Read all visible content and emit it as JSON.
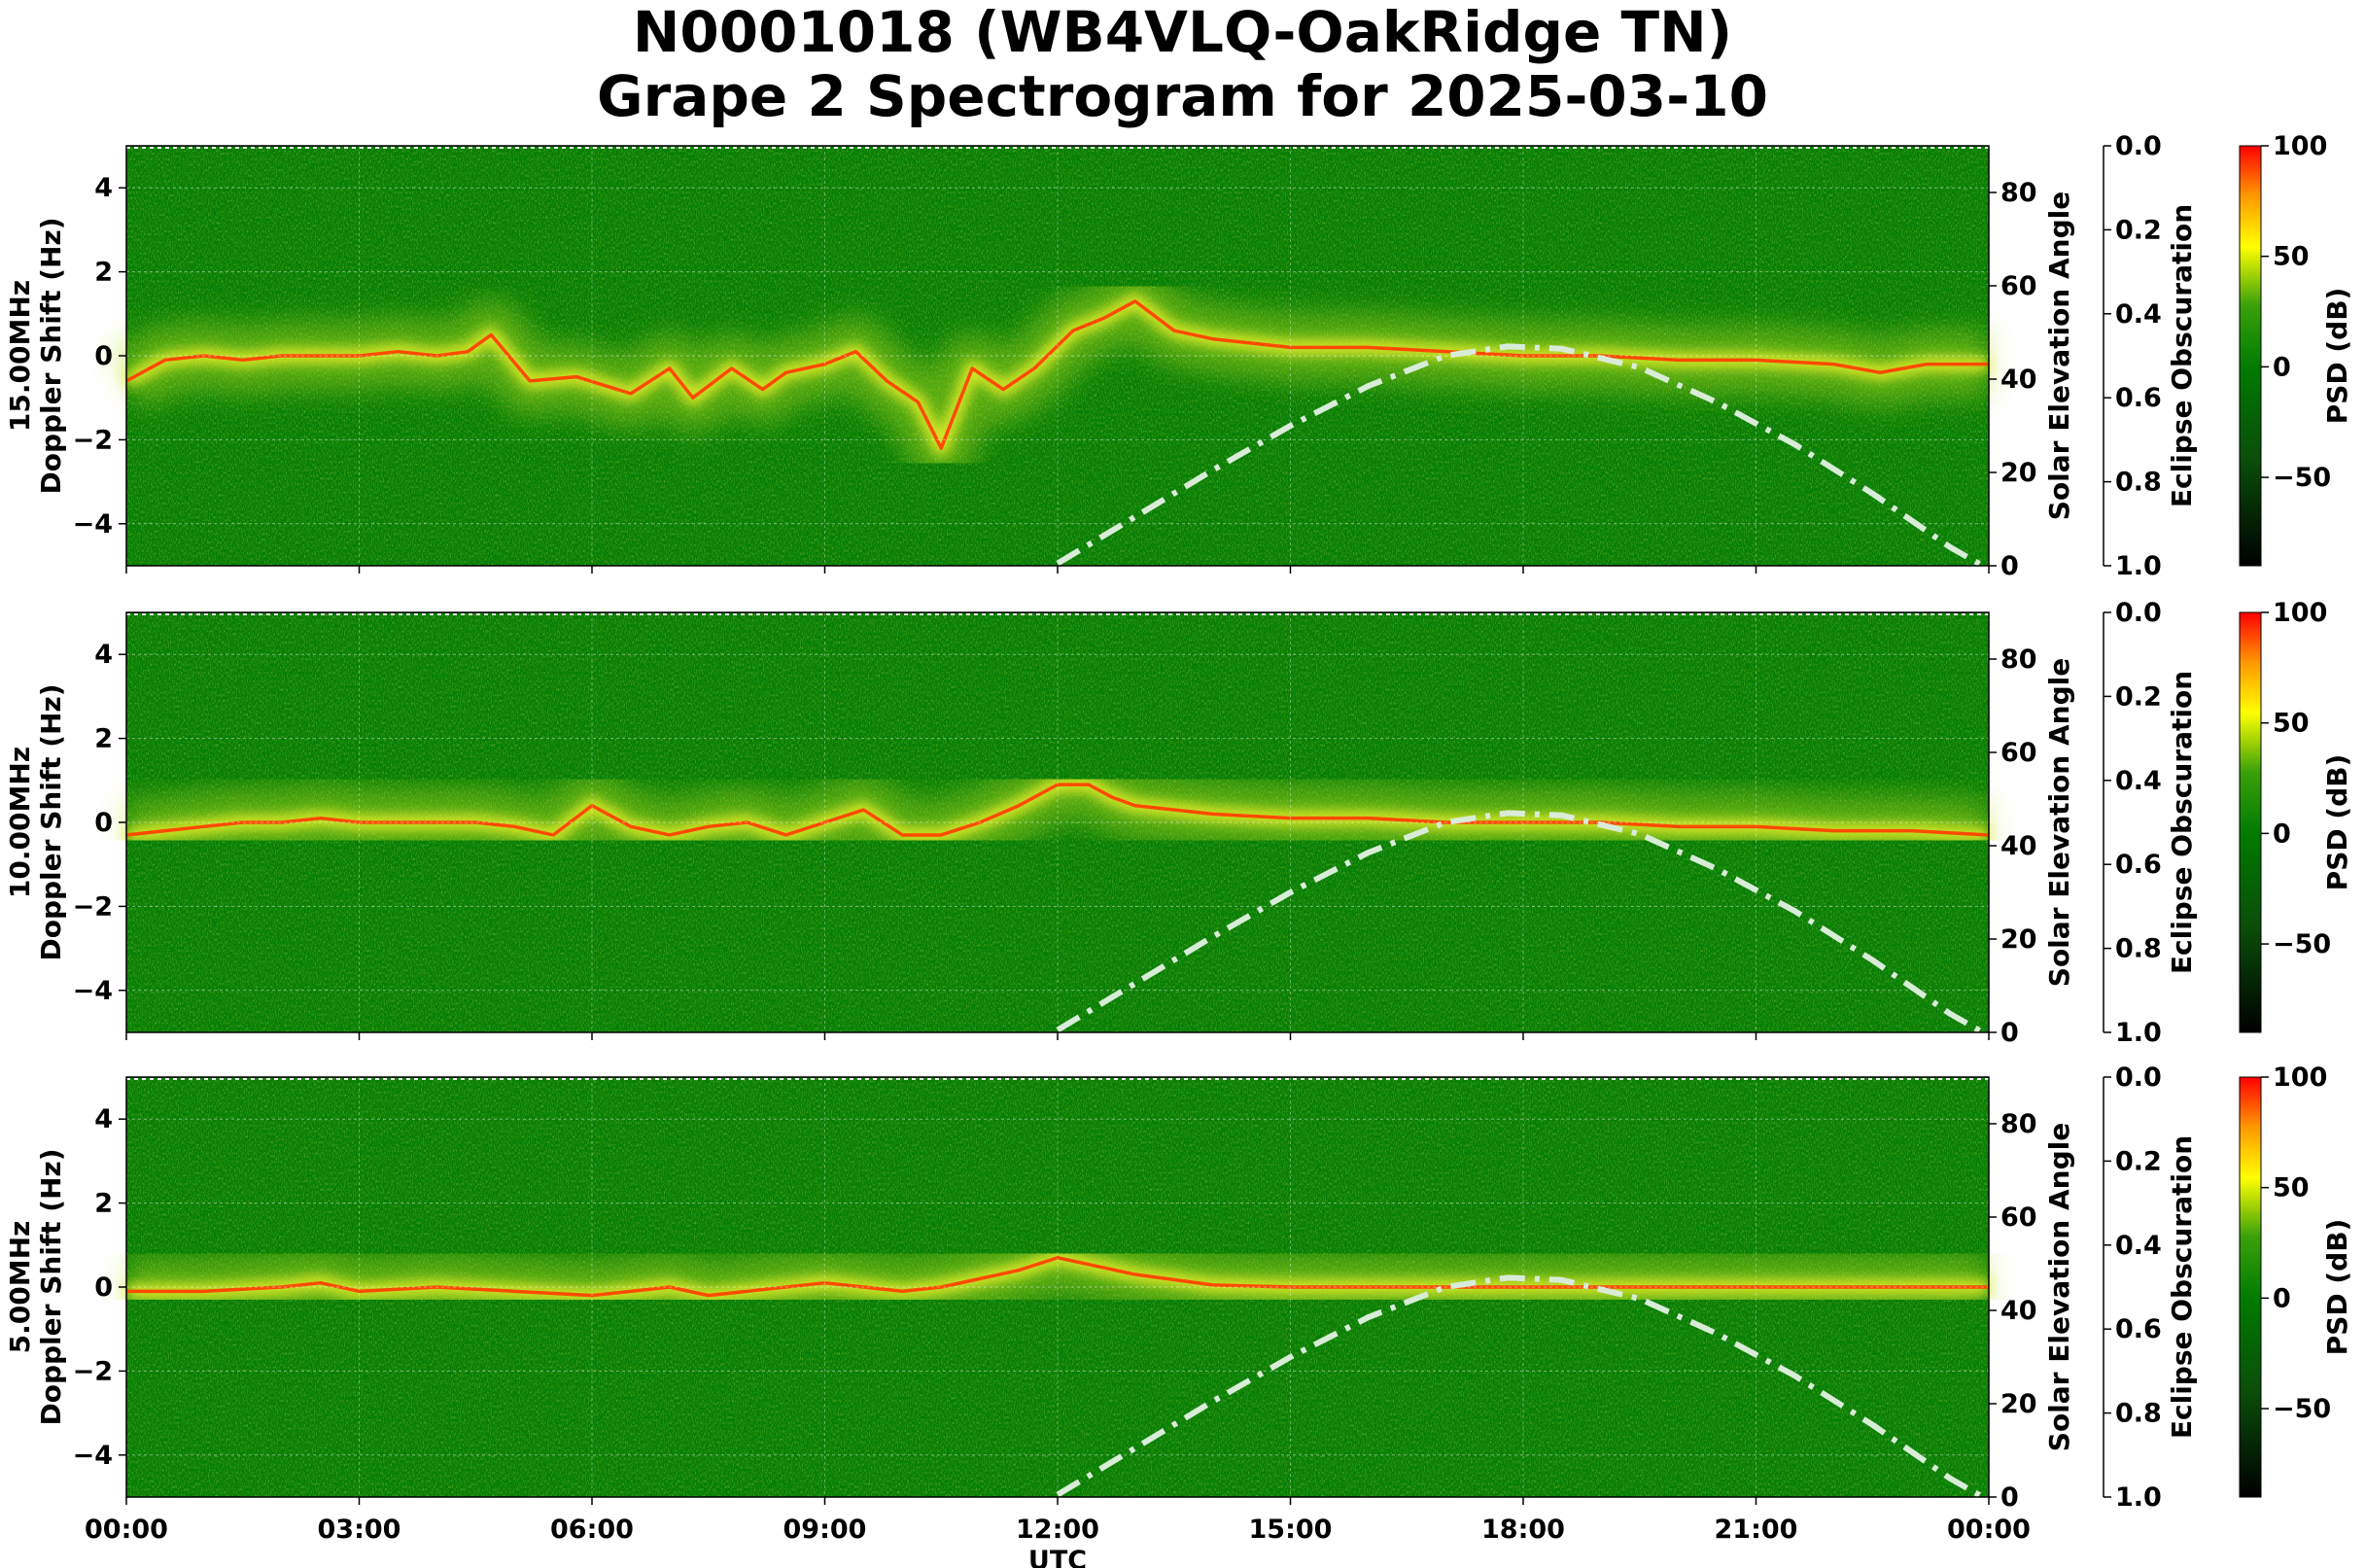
{
  "figure": {
    "title_line1": "N0001018 (WB4VLQ-OakRidge TN)",
    "title_line2": "Grape 2 Spectrogram for 2025-03-10"
  },
  "chart_data": [
    {
      "type": "heatmap",
      "panel_label": "15.00MHz",
      "ylabel": "Doppler Shift (Hz)",
      "ylim": [
        -5,
        5
      ],
      "yticks": [
        4,
        2,
        0,
        -2,
        -4
      ],
      "xlim": [
        "00:00",
        "24:00"
      ],
      "xticks": [
        "00:00",
        "03:00",
        "06:00",
        "09:00",
        "12:00",
        "15:00",
        "18:00",
        "21:00",
        "00:00"
      ],
      "right_axis_1": {
        "label": "Solar Elevation Angle",
        "ylim": [
          0,
          90
        ],
        "ticks": [
          80,
          60,
          40,
          20,
          0
        ]
      },
      "right_axis_2": {
        "label": "Eclipse Obscuration",
        "ylim": [
          1.0,
          0.0
        ],
        "ticks": [
          "0.0",
          "0.2",
          "0.4",
          "0.6",
          "0.8",
          "1.0"
        ]
      },
      "colorbar": {
        "label": "PSD (dB)",
        "range": [
          -90,
          100
        ],
        "ticks": [
          "100",
          "50",
          "0",
          "−50"
        ]
      },
      "doppler_trace": {
        "x_hours": [
          0,
          0.5,
          1,
          1.5,
          2,
          2.5,
          3,
          3.5,
          4,
          4.4,
          4.7,
          5.2,
          5.8,
          6.5,
          7,
          7.3,
          7.8,
          8.2,
          8.5,
          9,
          9.4,
          9.8,
          10.2,
          10.5,
          10.9,
          11.3,
          11.7,
          12.2,
          12.6,
          13,
          13.5,
          14,
          15,
          16,
          17,
          18,
          19,
          20,
          21,
          22,
          22.6,
          23.2,
          24
        ],
        "y_hz": [
          -0.6,
          -0.1,
          0.0,
          -0.1,
          0.0,
          0.0,
          0.0,
          0.1,
          0.0,
          0.1,
          0.5,
          -0.6,
          -0.5,
          -0.9,
          -0.3,
          -1.0,
          -0.3,
          -0.8,
          -0.4,
          -0.2,
          0.1,
          -0.6,
          -1.1,
          -2.2,
          -0.3,
          -0.8,
          -0.3,
          0.6,
          0.9,
          1.3,
          0.6,
          0.4,
          0.2,
          0.2,
          0.1,
          0.0,
          0.0,
          -0.1,
          -0.1,
          -0.2,
          -0.4,
          -0.2,
          -0.2
        ]
      },
      "solar_elevation": {
        "x_hours": [
          12,
          13,
          14,
          15,
          16,
          17,
          17.8,
          18.5,
          19.5,
          20.5,
          21.5,
          22.5,
          23.5,
          23.9
        ],
        "deg": [
          0.5,
          10.5,
          20.5,
          30,
          38.5,
          45,
          47,
          46.5,
          42.5,
          35,
          26,
          15.5,
          4,
          0.2
        ]
      }
    },
    {
      "type": "heatmap",
      "panel_label": "10.00MHz",
      "ylabel": "Doppler Shift (Hz)",
      "ylim": [
        -5,
        5
      ],
      "yticks": [
        4,
        2,
        0,
        -2,
        -4
      ],
      "xlim": [
        "00:00",
        "24:00"
      ],
      "xticks": [
        "00:00",
        "03:00",
        "06:00",
        "09:00",
        "12:00",
        "15:00",
        "18:00",
        "21:00",
        "00:00"
      ],
      "right_axis_1": {
        "label": "Solar Elevation Angle",
        "ylim": [
          0,
          90
        ],
        "ticks": [
          80,
          60,
          40,
          20,
          0
        ]
      },
      "right_axis_2": {
        "label": "Eclipse Obscuration",
        "ylim": [
          1.0,
          0.0
        ],
        "ticks": [
          "0.0",
          "0.2",
          "0.4",
          "0.6",
          "0.8",
          "1.0"
        ]
      },
      "colorbar": {
        "label": "PSD (dB)",
        "range": [
          -90,
          100
        ],
        "ticks": [
          "100",
          "50",
          "0",
          "−50"
        ]
      },
      "doppler_trace": {
        "x_hours": [
          0,
          0.5,
          1,
          1.5,
          2,
          2.5,
          3,
          3.5,
          4,
          4.5,
          5,
          5.5,
          6,
          6.5,
          7,
          7.5,
          8,
          8.5,
          9,
          9.5,
          10,
          10.5,
          11,
          11.5,
          12,
          12.4,
          12.7,
          13,
          14,
          15,
          16,
          17,
          18,
          19,
          20,
          21,
          22,
          23,
          24
        ],
        "y_hz": [
          -0.3,
          -0.2,
          -0.1,
          0.0,
          0.0,
          0.1,
          0.0,
          0.0,
          0.0,
          0.0,
          -0.1,
          -0.3,
          0.4,
          -0.1,
          -0.3,
          -0.1,
          0.0,
          -0.3,
          0.0,
          0.3,
          -0.3,
          -0.3,
          0.0,
          0.4,
          0.9,
          0.9,
          0.6,
          0.4,
          0.2,
          0.1,
          0.1,
          0.0,
          0.0,
          0.0,
          -0.1,
          -0.1,
          -0.2,
          -0.2,
          -0.3
        ]
      },
      "solar_elevation": {
        "x_hours": [
          12,
          13,
          14,
          15,
          16,
          17,
          17.8,
          18.5,
          19.5,
          20.5,
          21.5,
          22.5,
          23.5,
          23.9
        ],
        "deg": [
          0.5,
          10.5,
          20.5,
          30,
          38.5,
          45,
          47,
          46.5,
          42.5,
          35,
          26,
          15.5,
          4,
          0.2
        ]
      }
    },
    {
      "type": "heatmap",
      "panel_label": "5.00MHz",
      "ylabel": "Doppler Shift (Hz)",
      "xlabel": "UTC",
      "ylim": [
        -5,
        5
      ],
      "yticks": [
        4,
        2,
        0,
        -2,
        -4
      ],
      "xlim": [
        "00:00",
        "24:00"
      ],
      "xticks": [
        "00:00",
        "03:00",
        "06:00",
        "09:00",
        "12:00",
        "15:00",
        "18:00",
        "21:00",
        "00:00"
      ],
      "right_axis_1": {
        "label": "Solar Elevation Angle",
        "ylim": [
          0,
          90
        ],
        "ticks": [
          80,
          60,
          40,
          20,
          0
        ]
      },
      "right_axis_2": {
        "label": "Eclipse Obscuration",
        "ylim": [
          1.0,
          0.0
        ],
        "ticks": [
          "0.0",
          "0.2",
          "0.4",
          "0.6",
          "0.8",
          "1.0"
        ]
      },
      "colorbar": {
        "label": "PSD (dB)",
        "range": [
          -90,
          100
        ],
        "ticks": [
          "100",
          "50",
          "0",
          "−50"
        ]
      },
      "doppler_trace": {
        "x_hours": [
          0,
          1,
          2,
          2.5,
          3,
          4,
          5,
          6,
          7,
          7.5,
          8,
          9,
          9.5,
          10,
          10.5,
          11,
          11.5,
          12,
          12.5,
          13,
          14,
          15,
          16,
          17,
          18,
          19,
          20,
          21,
          22,
          23,
          24
        ],
        "y_hz": [
          -0.1,
          -0.1,
          0.0,
          0.1,
          -0.1,
          0.0,
          -0.1,
          -0.2,
          0.0,
          -0.2,
          -0.1,
          0.1,
          0.0,
          -0.1,
          0.0,
          0.2,
          0.4,
          0.7,
          0.5,
          0.3,
          0.05,
          0.0,
          0.0,
          0.0,
          0.0,
          0.0,
          0.0,
          0.0,
          0.0,
          0.0,
          0.0
        ]
      },
      "solar_elevation": {
        "x_hours": [
          12,
          13,
          14,
          15,
          16,
          17,
          17.8,
          18.5,
          19.5,
          20.5,
          21.5,
          22.5,
          23.5,
          23.9
        ],
        "deg": [
          0.5,
          10.5,
          20.5,
          30,
          38.5,
          45,
          47,
          46.5,
          42.5,
          35,
          26,
          15.5,
          4,
          0.2
        ]
      }
    }
  ]
}
